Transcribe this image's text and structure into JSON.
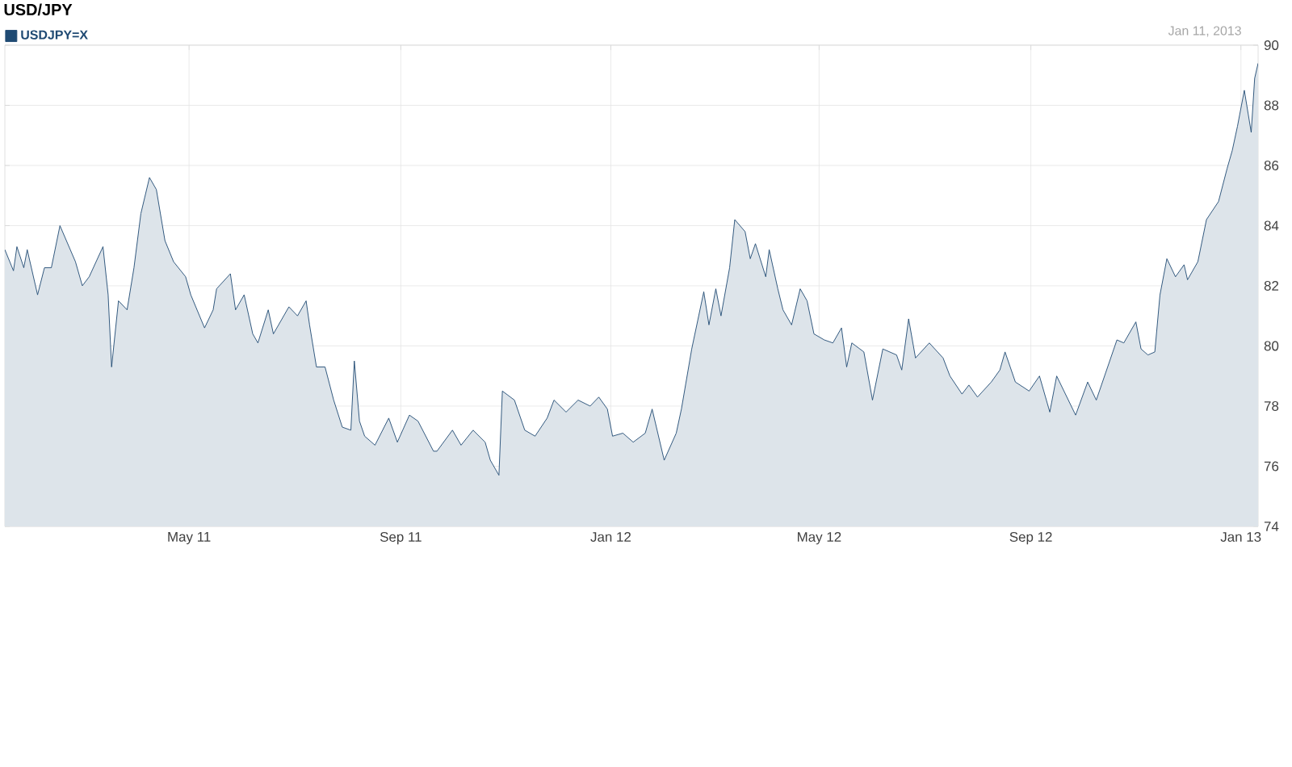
{
  "chart_data": {
    "type": "area",
    "title": "USD/JPY",
    "subtitle": "Jan 11, 2013",
    "x": [
      "2011-01-14",
      "2011-01-19",
      "2011-01-21",
      "2011-01-25",
      "2011-01-27",
      "2011-02-02",
      "2011-02-06",
      "2011-02-10",
      "2011-02-15",
      "2011-02-24",
      "2011-02-28",
      "2011-03-04",
      "2011-03-12",
      "2011-03-15",
      "2011-03-17",
      "2011-03-21",
      "2011-03-26",
      "2011-03-30",
      "2011-04-03",
      "2011-04-08",
      "2011-04-12",
      "2011-04-17",
      "2011-04-22",
      "2011-04-29",
      "2011-05-02",
      "2011-05-10",
      "2011-05-15",
      "2011-05-17",
      "2011-05-25",
      "2011-05-28",
      "2011-06-02",
      "2011-06-07",
      "2011-06-10",
      "2011-06-16",
      "2011-06-19",
      "2011-06-28",
      "2011-07-03",
      "2011-07-08",
      "2011-07-10",
      "2011-07-14",
      "2011-07-19",
      "2011-07-24",
      "2011-07-29",
      "2011-08-03",
      "2011-08-05",
      "2011-08-08",
      "2011-08-11",
      "2011-08-17",
      "2011-08-25",
      "2011-08-30",
      "2011-09-06",
      "2011-09-11",
      "2011-09-20",
      "2011-09-22",
      "2011-10-01",
      "2011-10-06",
      "2011-10-13",
      "2011-10-20",
      "2011-10-23",
      "2011-10-28",
      "2011-10-30",
      "2011-11-06",
      "2011-11-12",
      "2011-11-18",
      "2011-11-25",
      "2011-11-29",
      "2011-12-06",
      "2011-12-13",
      "2011-12-20",
      "2011-12-25",
      "2011-12-30",
      "2012-01-02",
      "2012-01-08",
      "2012-01-14",
      "2012-01-21",
      "2012-01-25",
      "2012-02-01",
      "2012-02-08",
      "2012-02-11",
      "2012-02-17",
      "2012-02-24",
      "2012-02-27",
      "2012-03-02",
      "2012-03-05",
      "2012-03-10",
      "2012-03-13",
      "2012-03-19",
      "2012-03-22",
      "2012-03-25",
      "2012-03-31",
      "2012-04-02",
      "2012-04-07",
      "2012-04-10",
      "2012-04-15",
      "2012-04-20",
      "2012-04-24",
      "2012-04-28",
      "2012-05-04",
      "2012-05-09",
      "2012-05-14",
      "2012-05-17",
      "2012-05-20",
      "2012-05-27",
      "2012-06-01",
      "2012-06-07",
      "2012-06-15",
      "2012-06-18",
      "2012-06-22",
      "2012-06-26",
      "2012-07-04",
      "2012-07-12",
      "2012-07-16",
      "2012-07-23",
      "2012-07-27",
      "2012-08-01",
      "2012-08-09",
      "2012-08-14",
      "2012-08-17",
      "2012-08-23",
      "2012-08-31",
      "2012-09-06",
      "2012-09-12",
      "2012-09-16",
      "2012-09-27",
      "2012-10-04",
      "2012-10-09",
      "2012-10-15",
      "2012-10-21",
      "2012-10-25",
      "2012-11-01",
      "2012-11-04",
      "2012-11-08",
      "2012-11-12",
      "2012-11-15",
      "2012-11-19",
      "2012-11-24",
      "2012-11-29",
      "2012-12-01",
      "2012-12-07",
      "2012-12-12",
      "2012-12-19",
      "2012-12-24",
      "2012-12-27",
      "2012-12-30",
      "2013-01-03",
      "2013-01-07",
      "2013-01-09",
      "2013-01-11"
    ],
    "series": [
      {
        "name": "USDJPY=X",
        "color": "#1f4a73",
        "values": [
          83.2,
          82.5,
          83.3,
          82.6,
          83.2,
          81.7,
          82.6,
          82.6,
          84.0,
          82.8,
          82.0,
          82.3,
          83.3,
          81.7,
          79.3,
          81.5,
          81.2,
          82.6,
          84.4,
          85.6,
          85.2,
          83.5,
          82.8,
          82.3,
          81.7,
          80.6,
          81.2,
          81.9,
          82.4,
          81.2,
          81.7,
          80.4,
          80.1,
          81.2,
          80.4,
          81.3,
          81.0,
          81.5,
          80.7,
          79.3,
          79.3,
          78.2,
          77.3,
          77.2,
          79.5,
          77.5,
          77.0,
          76.7,
          77.6,
          76.8,
          77.7,
          77.5,
          76.5,
          76.5,
          77.2,
          76.7,
          77.2,
          76.8,
          76.2,
          75.7,
          78.5,
          78.2,
          77.2,
          77.0,
          77.6,
          78.2,
          77.8,
          78.2,
          78.0,
          78.3,
          77.9,
          77.0,
          77.1,
          76.8,
          77.1,
          77.9,
          76.2,
          77.1,
          77.9,
          79.9,
          81.8,
          80.7,
          81.9,
          81.0,
          82.6,
          84.2,
          83.8,
          82.9,
          83.4,
          82.3,
          83.2,
          81.9,
          81.2,
          80.7,
          81.9,
          81.5,
          80.4,
          80.2,
          80.1,
          80.6,
          79.3,
          80.1,
          79.8,
          78.2,
          79.9,
          79.7,
          79.2,
          80.9,
          79.6,
          80.1,
          79.6,
          79.0,
          78.4,
          78.7,
          78.3,
          78.8,
          79.2,
          79.8,
          78.8,
          78.5,
          79.0,
          77.8,
          79.0,
          77.7,
          78.8,
          78.2,
          79.2,
          80.2,
          80.1,
          80.8,
          79.9,
          79.7,
          79.8,
          81.7,
          82.9,
          82.3,
          82.7,
          82.2,
          82.8,
          84.2,
          84.8,
          85.9,
          86.5,
          87.3,
          88.5,
          87.1,
          88.9,
          89.4
        ]
      }
    ],
    "xlim": [
      "2011-01-14",
      "2013-01-11"
    ],
    "xticks": [
      {
        "value": "2011-05-01",
        "label": "May 11"
      },
      {
        "value": "2011-09-01",
        "label": "Sep 11"
      },
      {
        "value": "2012-01-01",
        "label": "Jan 12"
      },
      {
        "value": "2012-05-01",
        "label": "May 12"
      },
      {
        "value": "2012-09-01",
        "label": "Sep 12"
      },
      {
        "value": "2013-01-01",
        "label": "Jan 13"
      }
    ],
    "ylim": [
      74,
      90
    ],
    "yticks": [
      74,
      76,
      78,
      80,
      82,
      84,
      86,
      88,
      90
    ],
    "grid": true,
    "legend": "top left",
    "marker": "none",
    "line_style": "solid"
  }
}
